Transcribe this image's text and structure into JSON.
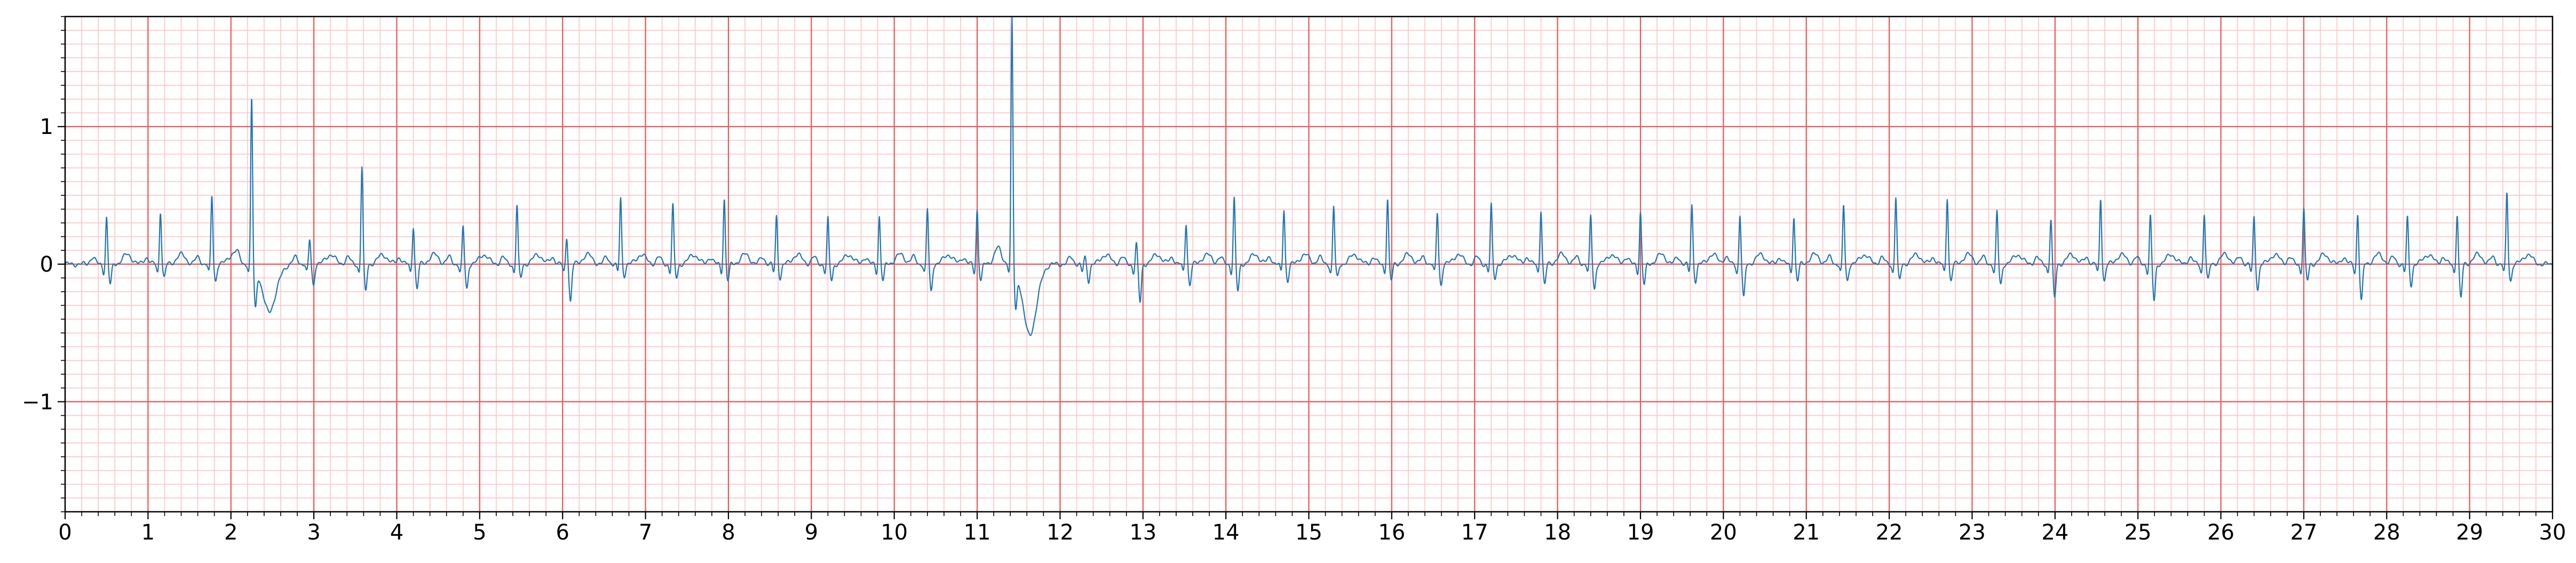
{
  "chart_data": {
    "type": "line",
    "title": "",
    "xlabel": "",
    "ylabel": "",
    "xlim": [
      0,
      30
    ],
    "ylim": [
      -1.8,
      1.8
    ],
    "grid": "ecg-paper",
    "colors": {
      "trace": "#1f77b4",
      "grid_major": "#ee5555",
      "grid_minor": "#ffc4c4",
      "axis": "#000000",
      "background": "#ffffff"
    },
    "x_ticks": [
      {
        "value": 0,
        "label": "0"
      },
      {
        "value": 1,
        "label": "1"
      },
      {
        "value": 2,
        "label": "2"
      },
      {
        "value": 3,
        "label": "3"
      },
      {
        "value": 4,
        "label": "4"
      },
      {
        "value": 5,
        "label": "5"
      },
      {
        "value": 6,
        "label": "6"
      },
      {
        "value": 7,
        "label": "7"
      },
      {
        "value": 8,
        "label": "8"
      },
      {
        "value": 9,
        "label": "9"
      },
      {
        "value": 10,
        "label": "10"
      },
      {
        "value": 11,
        "label": "11"
      },
      {
        "value": 12,
        "label": "12"
      },
      {
        "value": 13,
        "label": "13"
      },
      {
        "value": 14,
        "label": "14"
      },
      {
        "value": 15,
        "label": "15"
      },
      {
        "value": 16,
        "label": "16"
      },
      {
        "value": 17,
        "label": "17"
      },
      {
        "value": 18,
        "label": "18"
      },
      {
        "value": 19,
        "label": "19"
      },
      {
        "value": 20,
        "label": "20"
      },
      {
        "value": 21,
        "label": "21"
      },
      {
        "value": 22,
        "label": "22"
      },
      {
        "value": 23,
        "label": "23"
      },
      {
        "value": 24,
        "label": "24"
      },
      {
        "value": 25,
        "label": "25"
      },
      {
        "value": 26,
        "label": "26"
      },
      {
        "value": 27,
        "label": "27"
      },
      {
        "value": 28,
        "label": "28"
      },
      {
        "value": 29,
        "label": "29"
      },
      {
        "value": 30,
        "label": "30"
      }
    ],
    "y_ticks": [
      {
        "value": 1,
        "label": "1"
      },
      {
        "value": 0,
        "label": "0"
      },
      {
        "value": -1,
        "label": "−1"
      }
    ],
    "series": [
      {
        "beats": [
          {
            "t": 0.5,
            "r": 0.34,
            "s": -0.15
          },
          {
            "t": 1.15,
            "r": 0.39,
            "s": -0.1
          },
          {
            "t": 1.77,
            "r": 0.5,
            "s": -0.12
          },
          {
            "t": 2.25,
            "r": 1.22,
            "s": -0.28,
            "after": -0.4
          },
          {
            "t": 2.95,
            "r": 0.18,
            "s": -0.15
          },
          {
            "t": 3.58,
            "r": 0.71,
            "s": -0.2
          },
          {
            "t": 4.2,
            "r": 0.28,
            "s": -0.18
          },
          {
            "t": 4.8,
            "r": 0.27,
            "s": -0.18
          },
          {
            "t": 5.45,
            "r": 0.43,
            "s": -0.1
          },
          {
            "t": 6.05,
            "r": 0.2,
            "s": -0.27
          },
          {
            "t": 6.7,
            "r": 0.48,
            "s": -0.08
          },
          {
            "t": 7.33,
            "r": 0.43,
            "s": -0.1
          },
          {
            "t": 7.95,
            "r": 0.48,
            "s": -0.12
          },
          {
            "t": 8.58,
            "r": 0.35,
            "s": -0.1
          },
          {
            "t": 9.2,
            "r": 0.33,
            "s": -0.12
          },
          {
            "t": 9.82,
            "r": 0.35,
            "s": -0.12
          },
          {
            "t": 10.4,
            "r": 0.4,
            "s": -0.2
          },
          {
            "t": 11.0,
            "r": 0.4,
            "s": -0.12
          },
          {
            "t": 11.42,
            "r": 1.8,
            "s": -0.28,
            "after": -0.57
          },
          {
            "t": 12.3,
            "r": 0.05,
            "s": -0.12
          },
          {
            "t": 12.92,
            "r": 0.15,
            "s": -0.28
          },
          {
            "t": 13.52,
            "r": 0.3,
            "s": -0.15
          },
          {
            "t": 14.1,
            "r": 0.48,
            "s": -0.2
          },
          {
            "t": 14.7,
            "r": 0.4,
            "s": -0.12
          },
          {
            "t": 15.3,
            "r": 0.42,
            "s": -0.1
          },
          {
            "t": 15.95,
            "r": 0.48,
            "s": -0.12
          },
          {
            "t": 16.55,
            "r": 0.38,
            "s": -0.15
          },
          {
            "t": 17.2,
            "r": 0.43,
            "s": -0.1
          },
          {
            "t": 17.8,
            "r": 0.4,
            "s": -0.15
          },
          {
            "t": 18.4,
            "r": 0.35,
            "s": -0.18
          },
          {
            "t": 19.0,
            "r": 0.38,
            "s": -0.15
          },
          {
            "t": 19.62,
            "r": 0.43,
            "s": -0.12
          },
          {
            "t": 20.2,
            "r": 0.36,
            "s": -0.25
          },
          {
            "t": 20.85,
            "r": 0.35,
            "s": -0.12
          },
          {
            "t": 21.45,
            "r": 0.43,
            "s": -0.12
          },
          {
            "t": 22.08,
            "r": 0.49,
            "s": -0.12
          },
          {
            "t": 22.7,
            "r": 0.49,
            "s": -0.12
          },
          {
            "t": 23.3,
            "r": 0.38,
            "s": -0.15
          },
          {
            "t": 23.95,
            "r": 0.33,
            "s": -0.25
          },
          {
            "t": 24.55,
            "r": 0.48,
            "s": -0.12
          },
          {
            "t": 25.15,
            "r": 0.35,
            "s": -0.27
          },
          {
            "t": 25.8,
            "r": 0.37,
            "s": -0.12
          },
          {
            "t": 26.4,
            "r": 0.34,
            "s": -0.18
          },
          {
            "t": 27.0,
            "r": 0.41,
            "s": -0.12
          },
          {
            "t": 27.65,
            "r": 0.37,
            "s": -0.27
          },
          {
            "t": 28.25,
            "r": 0.34,
            "s": -0.15
          },
          {
            "t": 28.85,
            "r": 0.37,
            "s": -0.25
          },
          {
            "t": 29.45,
            "r": 0.52,
            "s": -0.12
          }
        ]
      }
    ]
  }
}
